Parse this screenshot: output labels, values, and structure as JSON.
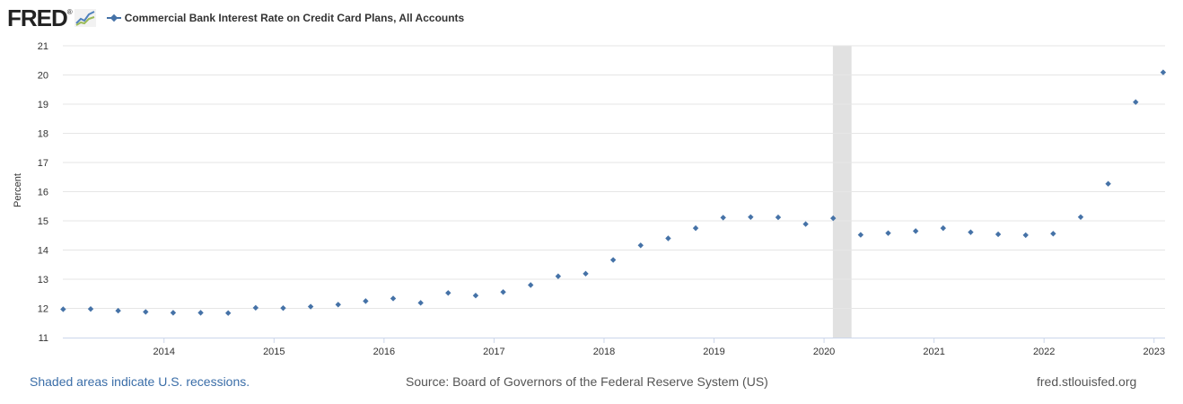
{
  "header": {
    "logo_text": "FRED",
    "logo_registered": "®",
    "legend_label": "Commercial Bank Interest Rate on Credit Card Plans, All Accounts"
  },
  "footer": {
    "recession_note": "Shaded areas indicate U.S. recessions.",
    "source": "Source: Board of Governors of the Federal Reserve System (US)",
    "site": "fred.stlouisfed.org"
  },
  "colors": {
    "series": "#4572a7",
    "grid": "#e6e6e6",
    "recession": "#e1e1e1",
    "axis_text": "#333333"
  },
  "chart_data": {
    "type": "scatter",
    "title": "Commercial Bank Interest Rate on Credit Card Plans, All Accounts",
    "xlabel": "",
    "ylabel": "Percent",
    "ylim": [
      11,
      21
    ],
    "xlim": [
      2013.08,
      2023.1
    ],
    "y_ticks": [
      "11",
      "12",
      "13",
      "14",
      "15",
      "16",
      "17",
      "18",
      "19",
      "20",
      "21"
    ],
    "x_ticks": [
      "2014",
      "2015",
      "2016",
      "2017",
      "2018",
      "2019",
      "2020",
      "2021",
      "2022",
      "2023"
    ],
    "recessions": [
      [
        2020.08,
        2020.25
      ]
    ],
    "series": [
      {
        "name": "Commercial Bank Interest Rate on Credit Card Plans, All Accounts",
        "x": [
          2013.083,
          2013.333,
          2013.583,
          2013.833,
          2014.083,
          2014.333,
          2014.583,
          2014.833,
          2015.083,
          2015.333,
          2015.583,
          2015.833,
          2016.083,
          2016.333,
          2016.583,
          2016.833,
          2017.083,
          2017.333,
          2017.583,
          2017.833,
          2018.083,
          2018.333,
          2018.583,
          2018.833,
          2019.083,
          2019.333,
          2019.583,
          2019.833,
          2020.083,
          2020.333,
          2020.583,
          2020.833,
          2021.083,
          2021.333,
          2021.583,
          2021.833,
          2022.083,
          2022.333,
          2022.583,
          2022.833,
          2023.083
        ],
        "values": [
          11.97,
          11.98,
          11.92,
          11.88,
          11.85,
          11.85,
          11.84,
          12.02,
          12.01,
          12.06,
          12.13,
          12.25,
          12.34,
          12.19,
          12.53,
          12.44,
          12.56,
          12.8,
          13.1,
          13.19,
          13.66,
          14.16,
          14.4,
          14.75,
          15.11,
          15.13,
          15.12,
          14.89,
          15.09,
          14.52,
          14.58,
          14.65,
          14.75,
          14.61,
          14.54,
          14.51,
          14.56,
          15.13,
          16.27,
          19.07,
          20.09
        ]
      }
    ]
  }
}
